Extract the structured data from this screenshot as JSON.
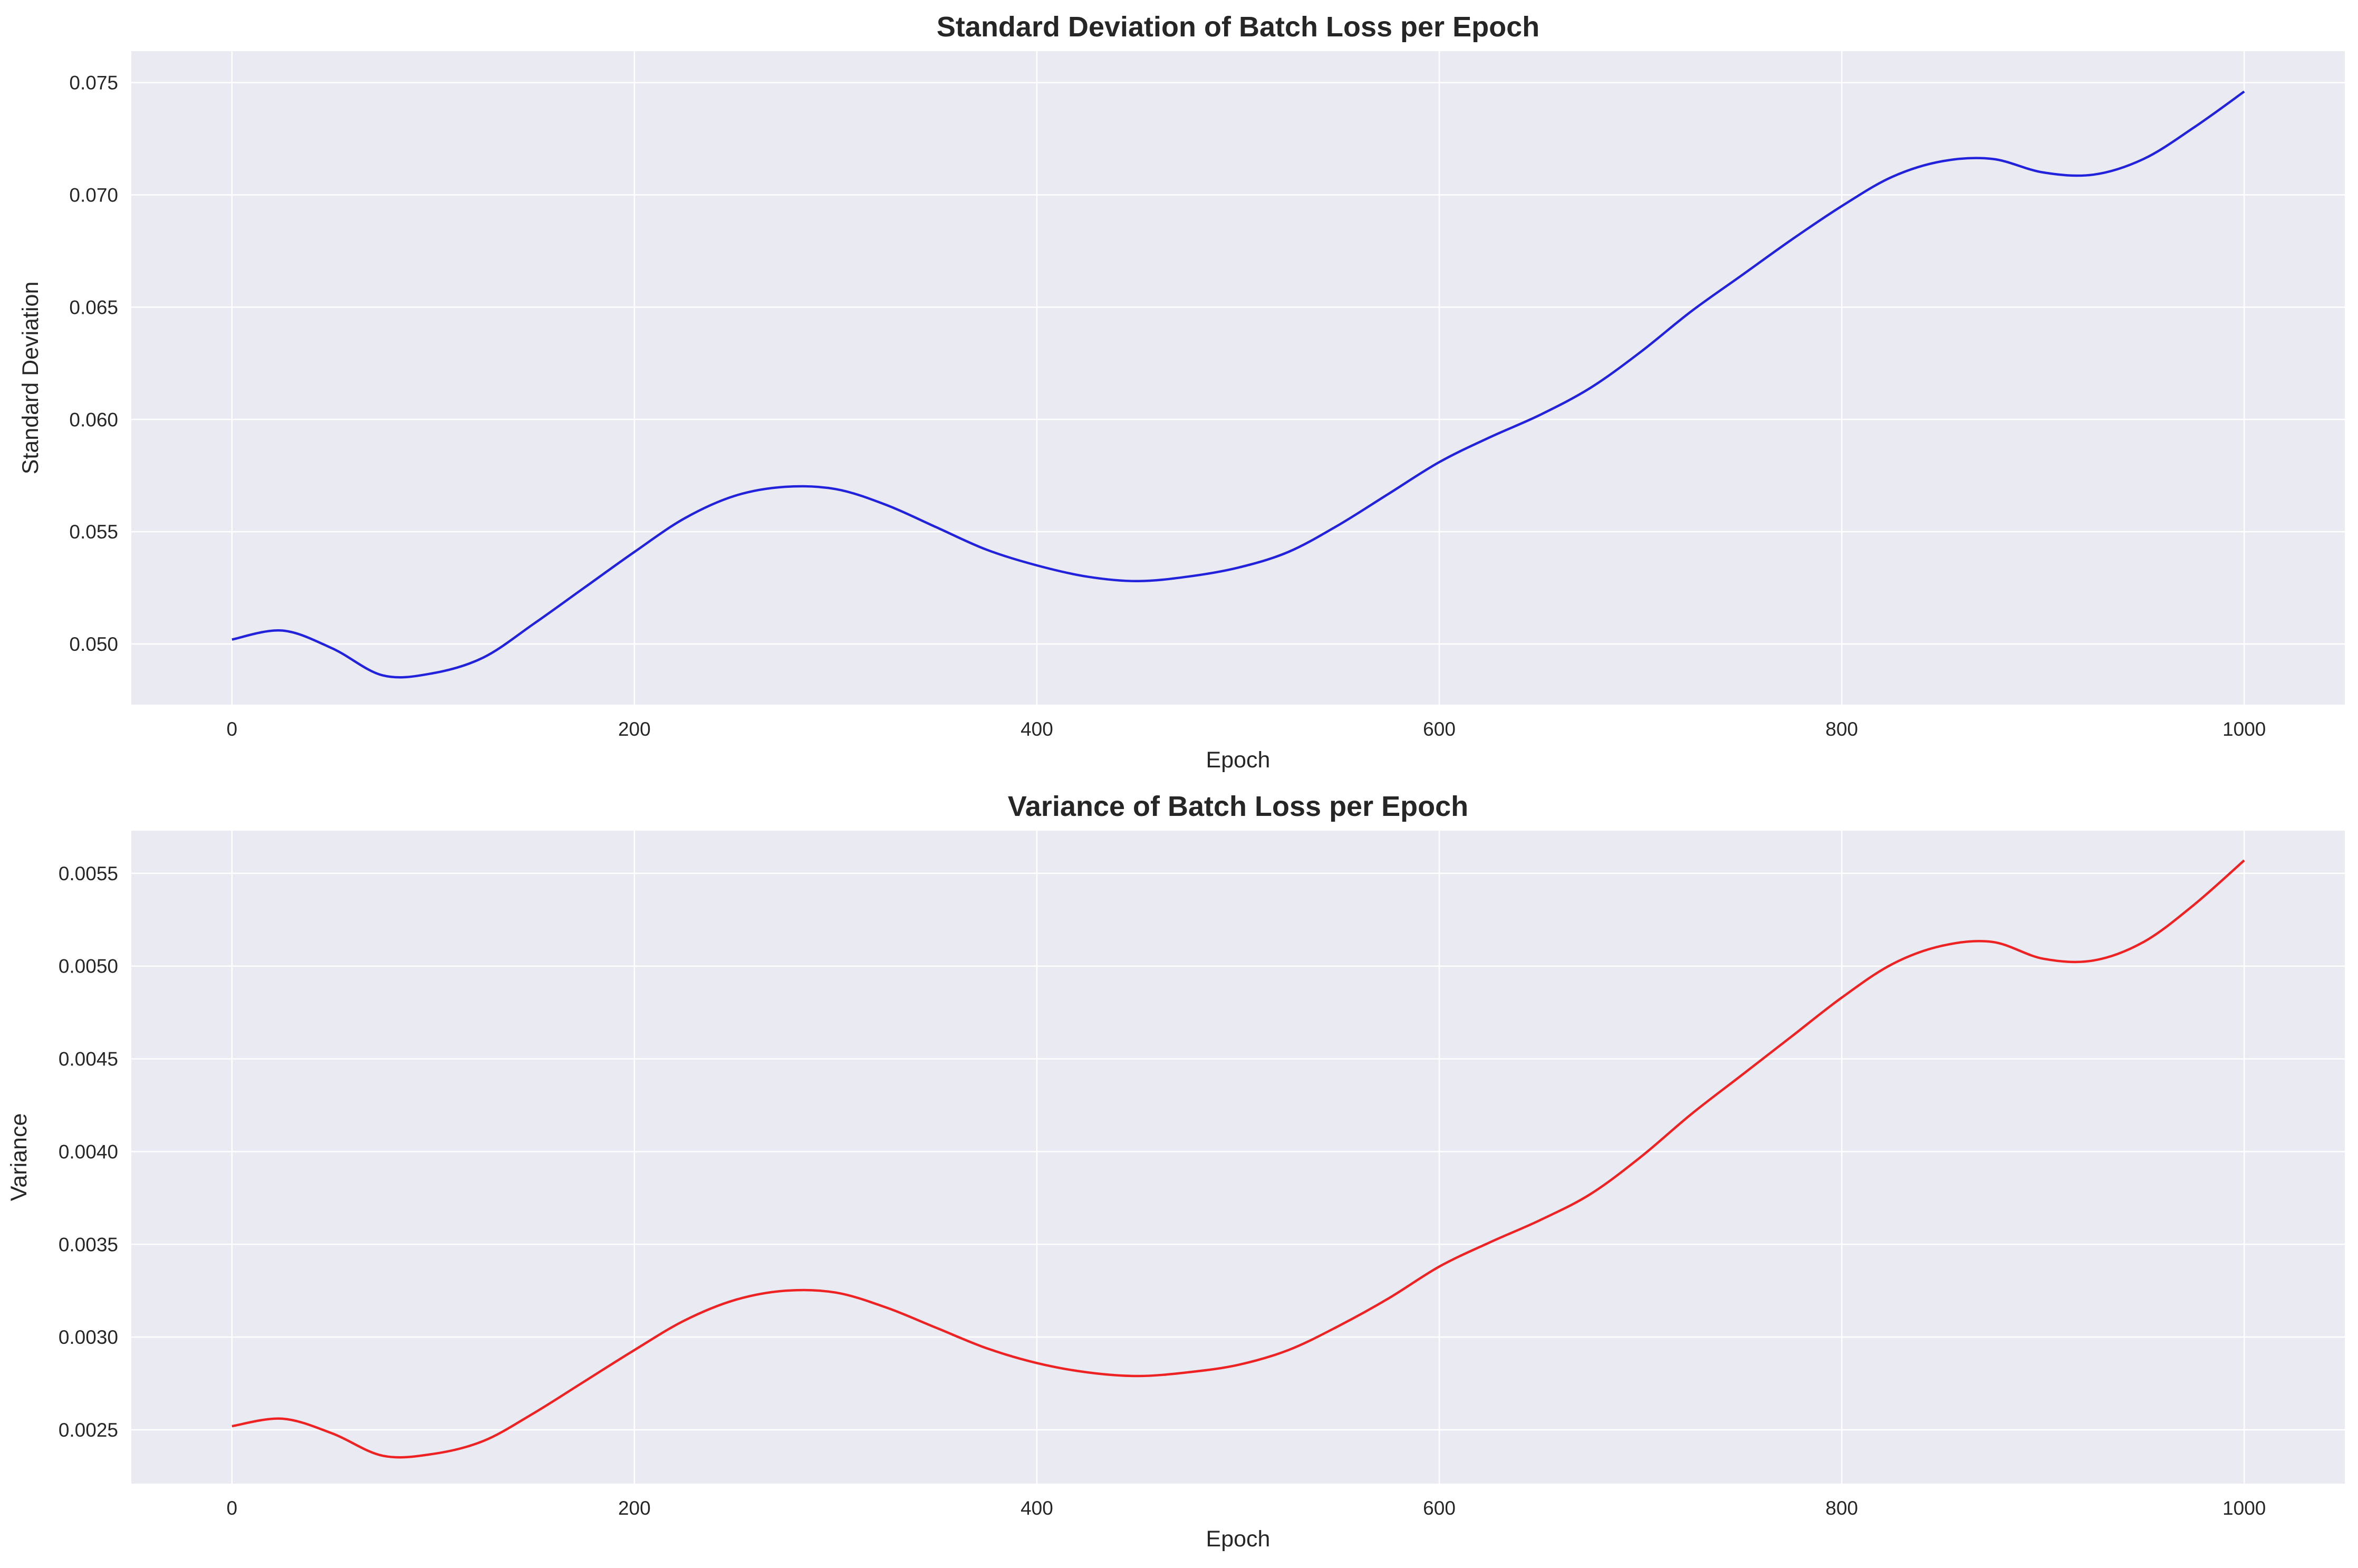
{
  "chart_data": [
    {
      "type": "line",
      "title": "Standard Deviation of Batch Loss per Epoch",
      "xlabel": "Epoch",
      "ylabel": "Standard Deviation",
      "xlim": [
        -50,
        1050
      ],
      "ylim": [
        0.0473,
        0.0764
      ],
      "xticks": [
        0,
        200,
        400,
        600,
        800,
        1000
      ],
      "xtick_labels": [
        "0",
        "200",
        "400",
        "600",
        "800",
        "1000"
      ],
      "yticks": [
        0.05,
        0.055,
        0.06,
        0.065,
        0.07,
        0.075
      ],
      "ytick_labels": [
        "0.050",
        "0.055",
        "0.060",
        "0.065",
        "0.070",
        "0.075"
      ],
      "grid": true,
      "background": "#eaeaf2",
      "series": [
        {
          "color": "#2222dd",
          "x": [
            0,
            25,
            50,
            75,
            100,
            125,
            150,
            175,
            200,
            225,
            250,
            275,
            300,
            325,
            350,
            375,
            400,
            425,
            450,
            475,
            500,
            525,
            550,
            575,
            600,
            625,
            650,
            675,
            700,
            725,
            750,
            775,
            800,
            825,
            850,
            875,
            900,
            925,
            950,
            975,
            1000
          ],
          "y": [
            0.0502,
            0.0506,
            0.0498,
            0.0486,
            0.0487,
            0.0494,
            0.0509,
            0.0525,
            0.0541,
            0.0556,
            0.0566,
            0.057,
            0.0569,
            0.0562,
            0.0552,
            0.0542,
            0.0535,
            0.053,
            0.0528,
            0.053,
            0.0534,
            0.0541,
            0.0553,
            0.0567,
            0.0581,
            0.0592,
            0.0602,
            0.0614,
            0.063,
            0.0648,
            0.0664,
            0.068,
            0.0695,
            0.0708,
            0.0715,
            0.0716,
            0.071,
            0.0709,
            0.0716,
            0.073,
            0.0746
          ]
        }
      ]
    },
    {
      "type": "line",
      "title": "Variance of Batch Loss per Epoch",
      "xlabel": "Epoch",
      "ylabel": "Variance",
      "xlim": [
        -50,
        1050
      ],
      "ylim": [
        0.00221,
        0.00573
      ],
      "xticks": [
        0,
        200,
        400,
        600,
        800,
        1000
      ],
      "xtick_labels": [
        "0",
        "200",
        "400",
        "600",
        "800",
        "1000"
      ],
      "yticks": [
        0.0025,
        0.003,
        0.0035,
        0.004,
        0.0045,
        0.005,
        0.0055
      ],
      "ytick_labels": [
        "0.0025",
        "0.0030",
        "0.0035",
        "0.0040",
        "0.0045",
        "0.0050",
        "0.0055"
      ],
      "grid": true,
      "background": "#eaeaf2",
      "series": [
        {
          "color": "#ee2222",
          "x": [
            0,
            25,
            50,
            75,
            100,
            125,
            150,
            175,
            200,
            225,
            250,
            275,
            300,
            325,
            350,
            375,
            400,
            425,
            450,
            475,
            500,
            525,
            550,
            575,
            600,
            625,
            650,
            675,
            700,
            725,
            750,
            775,
            800,
            825,
            850,
            875,
            900,
            925,
            950,
            975,
            1000
          ],
          "y": [
            0.00252,
            0.00256,
            0.00248,
            0.00236,
            0.00237,
            0.00244,
            0.00259,
            0.00276,
            0.00293,
            0.00309,
            0.0032,
            0.00325,
            0.00324,
            0.00316,
            0.00305,
            0.00294,
            0.00286,
            0.00281,
            0.00279,
            0.00281,
            0.00285,
            0.00293,
            0.00306,
            0.00321,
            0.00338,
            0.00351,
            0.00363,
            0.00377,
            0.00397,
            0.0042,
            0.00441,
            0.00462,
            0.00483,
            0.00501,
            0.00511,
            0.00513,
            0.00504,
            0.00503,
            0.00513,
            0.00533,
            0.00557
          ]
        }
      ]
    }
  ]
}
